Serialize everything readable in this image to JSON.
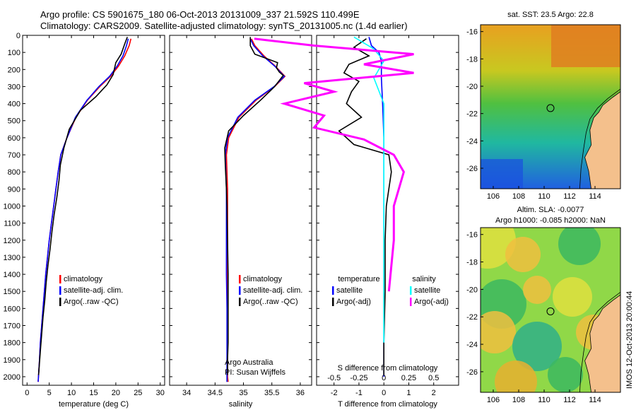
{
  "header": {
    "line1": "Argo profile: CS 5901675_180 06-Oct-2013 20131009_337 21.592S 110.499E",
    "line2": "Climatology: CARS2009. Satellite-adjusted climatology: synTS_20131005.nc (1.4d earlier)"
  },
  "stamp": "IMOS 12-Oct-2013 20:00:44",
  "colors": {
    "climatology": "#ff0000",
    "satellite": "#0000ff",
    "argo": "#000000",
    "sal_satellite": "#00ffff",
    "sal_argo": "#ff00ff",
    "land": "#f4c08c"
  },
  "chart_data": [
    {
      "type": "line",
      "id": "temperature",
      "xlabel": "temperature (deg C)",
      "ylabel": "",
      "xlim": [
        -1,
        31
      ],
      "ylim": [
        2050,
        0
      ],
      "xticks": [
        "0",
        "5",
        "10",
        "15",
        "20",
        "25",
        "30"
      ],
      "yticks": [
        "0",
        "100",
        "200",
        "300",
        "400",
        "500",
        "600",
        "700",
        "800",
        "900",
        "1000",
        "1100",
        "1200",
        "1300",
        "1400",
        "1500",
        "1600",
        "1700",
        "1800",
        "1900",
        "2000"
      ],
      "legend": [
        "climatology",
        "satellite-adj. clim.",
        "Argo(..raw -QC)"
      ],
      "series": [
        {
          "name": "climatology",
          "x": [
            23.4,
            23.0,
            22.0,
            20.6,
            18.8,
            16.4,
            13.6,
            11.0,
            9.0,
            7.6,
            7.0,
            6.5,
            6.0,
            5.5,
            5.0,
            4.6,
            4.2,
            3.9,
            3.6,
            3.3,
            3.0,
            2.8,
            2.5
          ],
          "y": [
            20,
            60,
            120,
            180,
            240,
            300,
            380,
            480,
            600,
            700,
            800,
            900,
            1000,
            1100,
            1200,
            1300,
            1400,
            1500,
            1600,
            1700,
            1800,
            1900,
            2030
          ]
        },
        {
          "name": "satellite-adj. clim.",
          "x": [
            22.8,
            22.4,
            21.6,
            20.3,
            18.6,
            16.2,
            13.5,
            10.9,
            9.0,
            7.6,
            7.0,
            6.5,
            6.0,
            5.5,
            5.0,
            4.6,
            4.2,
            3.9,
            3.6,
            3.3,
            3.0,
            2.8,
            2.5
          ],
          "y": [
            20,
            60,
            120,
            180,
            240,
            300,
            380,
            480,
            600,
            700,
            800,
            900,
            1000,
            1100,
            1200,
            1300,
            1400,
            1500,
            1600,
            1700,
            1800,
            1900,
            2030
          ]
        },
        {
          "name": "Argo(..raw -QC)",
          "x": [
            22.6,
            22.0,
            21.2,
            20.0,
            19.4,
            18.0,
            15.5,
            12.0,
            9.5,
            8.3,
            7.5,
            7.2,
            6.7,
            6.1,
            5.6,
            5.2,
            4.7,
            4.3,
            4.0,
            3.6,
            3.3,
            3.0,
            2.6
          ],
          "y": [
            10,
            50,
            110,
            160,
            230,
            290,
            360,
            440,
            550,
            660,
            760,
            850,
            950,
            1050,
            1150,
            1250,
            1350,
            1450,
            1550,
            1650,
            1750,
            1850,
            1990
          ]
        }
      ]
    },
    {
      "type": "line",
      "id": "salinity",
      "xlabel": "salinity",
      "xlim": [
        33.7,
        36.2
      ],
      "ylim": [
        2050,
        0
      ],
      "xticks": [
        "34",
        "34.5",
        "35",
        "35.5",
        "36"
      ],
      "legend": [
        "climatology",
        "satellite-adj. clim.",
        "Argo(..raw -QC)"
      ],
      "annotation": [
        "Argo Australia",
        "PI: Susan Wijffels"
      ],
      "series": [
        {
          "name": "climatology",
          "x": [
            35.14,
            35.2,
            35.36,
            35.56,
            35.73,
            35.55,
            35.22,
            34.92,
            34.74,
            34.7,
            34.71,
            34.72,
            34.72,
            34.72,
            34.72,
            34.72,
            34.72,
            34.72,
            34.72,
            34.73
          ],
          "y": [
            20,
            60,
            120,
            180,
            240,
            300,
            380,
            480,
            600,
            700,
            800,
            900,
            1000,
            1200,
            1400,
            1600,
            1800,
            1900,
            2000,
            2030
          ]
        },
        {
          "name": "satellite-adj. clim.",
          "x": [
            35.12,
            35.18,
            35.34,
            35.55,
            35.72,
            35.54,
            35.2,
            34.9,
            34.72,
            34.68,
            34.69,
            34.7,
            34.7,
            34.7,
            34.7,
            34.71,
            34.71,
            34.71,
            34.71,
            34.71
          ],
          "y": [
            20,
            60,
            120,
            180,
            240,
            300,
            380,
            480,
            600,
            700,
            800,
            900,
            1000,
            1200,
            1400,
            1600,
            1800,
            1900,
            2000,
            2030
          ]
        },
        {
          "name": "Argo(..raw -QC)",
          "x": [
            35.12,
            35.12,
            35.2,
            35.6,
            35.58,
            35.63,
            35.7,
            35.55,
            35.3,
            35.0,
            34.74,
            34.67,
            34.68,
            34.7,
            34.71,
            34.72,
            34.73,
            34.73,
            34.73,
            34.72,
            34.72,
            34.72
          ],
          "y": [
            10,
            60,
            110,
            160,
            190,
            215,
            235,
            300,
            380,
            470,
            560,
            660,
            760,
            900,
            1000,
            1200,
            1400,
            1600,
            1800,
            1900,
            1950,
            1990
          ]
        }
      ]
    },
    {
      "type": "line",
      "id": "difference",
      "xlabel": "T difference from climatology",
      "xlabel_top": "S difference from climatology",
      "xlim": [
        -2.7,
        3.0
      ],
      "ylim": [
        2050,
        0
      ],
      "xticks": [
        "-2",
        "-1",
        "0",
        "1",
        "2"
      ],
      "xticks_top": [
        "-0.5",
        "-0.25",
        "0",
        "0.25",
        "0.5"
      ],
      "legend_headers": [
        "temperature",
        "salinity"
      ],
      "legend": [
        "satellite",
        "Argo(-adj)",
        "satellite",
        "Argo(-adj)"
      ],
      "series": [
        {
          "name": "satellite",
          "x": [
            -0.6,
            -0.5,
            -0.2,
            -0.1,
            -0.1,
            -0.05,
            0,
            0,
            0,
            0,
            0,
            0,
            0,
            0
          ],
          "y": [
            10,
            60,
            100,
            150,
            250,
            400,
            600,
            800,
            1000,
            1200,
            1400,
            1600,
            1800,
            2000
          ]
        },
        {
          "name": "Argo(-adj)",
          "x": [
            -0.7,
            -1.2,
            -0.6,
            -1.4,
            -1.6,
            -1.0,
            -1.3,
            -1.5,
            -0.9,
            -1.8,
            -1.2,
            0.2,
            0.3,
            0.1,
            0.05,
            0.05,
            0.0,
            0.0
          ],
          "y": [
            20,
            70,
            120,
            170,
            220,
            270,
            330,
            400,
            480,
            560,
            640,
            700,
            800,
            1000,
            1200,
            1500,
            1800,
            1990
          ]
        },
        {
          "name": "satellite",
          "x": [
            -0.3,
            -0.1,
            0,
            -0.1,
            0,
            0,
            0,
            0,
            0,
            0,
            0,
            0
          ],
          "y": [
            10,
            80,
            150,
            250,
            400,
            600,
            800,
            1000,
            1200,
            1400,
            1600,
            1800
          ]
        },
        {
          "name": "Argo(-adj)",
          "x": [
            -1.3,
            -0.7,
            0.3,
            -0.2,
            0.3,
            -0.8,
            -0.5,
            -1.0,
            -0.6,
            -0.7,
            -0.2,
            0.1,
            0.2,
            0.1,
            0.1,
            0.05
          ],
          "y": [
            20,
            60,
            110,
            170,
            220,
            280,
            330,
            400,
            470,
            540,
            610,
            700,
            800,
            1000,
            1200,
            1500
          ]
        }
      ]
    },
    {
      "type": "heatmap",
      "id": "sst-map",
      "title": "sat. SST: 23.5 Argo: 22.8",
      "xticks": [
        "106",
        "108",
        "110",
        "112",
        "114"
      ],
      "yticks": [
        "-16",
        "-18",
        "-20",
        "-22",
        "-24",
        "-26"
      ],
      "xlim": [
        105,
        116
      ],
      "ylim": [
        -27.5,
        -15.5
      ],
      "marker": [
        110.5,
        -21.6
      ]
    },
    {
      "type": "heatmap",
      "id": "sla-map",
      "title": "Altim. SLA: -0.0077",
      "subtitle": "Argo h1000: -0.085 h2000: NaN",
      "xticks": [
        "106",
        "108",
        "110",
        "112",
        "114"
      ],
      "yticks": [
        "-16",
        "-18",
        "-20",
        "-22",
        "-24",
        "-26"
      ],
      "xlim": [
        105,
        116
      ],
      "ylim": [
        -27.5,
        -15.5
      ],
      "marker": [
        110.5,
        -21.6
      ]
    }
  ]
}
